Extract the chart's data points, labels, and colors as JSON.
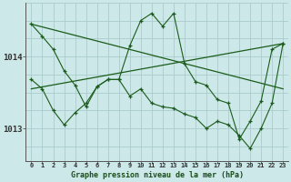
{
  "xlabel": "Graphe pression niveau de la mer (hPa)",
  "bg_color": "#cce8e8",
  "line_color": "#1a5c1a",
  "grid_color": "#aacccc",
  "ytick_labels": [
    "1013",
    "1014"
  ],
  "ytick_values": [
    1013.0,
    1014.0
  ],
  "xlim": [
    -0.5,
    23.5
  ],
  "ylim": [
    1012.55,
    1014.75
  ],
  "xtick_labels": [
    "0",
    "1",
    "2",
    "3",
    "4",
    "5",
    "6",
    "7",
    "8",
    "9",
    "10",
    "11",
    "12",
    "13",
    "14",
    "15",
    "16",
    "17",
    "18",
    "19",
    "20",
    "21",
    "22",
    "23"
  ],
  "line1_x": [
    0,
    1,
    2,
    3,
    4,
    5,
    6,
    7,
    8,
    9,
    10,
    11,
    12,
    13,
    14,
    15,
    16,
    17,
    18,
    19,
    20,
    21,
    22,
    23
  ],
  "line1_y": [
    1014.45,
    1014.28,
    1014.1,
    1013.8,
    1013.6,
    1013.3,
    1013.58,
    1013.68,
    1013.68,
    1014.15,
    1014.5,
    1014.6,
    1014.42,
    1014.6,
    1013.9,
    1013.65,
    1013.6,
    1013.4,
    1013.35,
    1012.85,
    1013.1,
    1013.38,
    1014.1,
    1014.18
  ],
  "line2_x": [
    0,
    1,
    2,
    3,
    4,
    5,
    6,
    7,
    8,
    9,
    10,
    11,
    12,
    13,
    14,
    15,
    16,
    17,
    18,
    19,
    20,
    21,
    22,
    23
  ],
  "line2_y": [
    1013.68,
    1013.55,
    1013.25,
    1013.05,
    1013.22,
    1013.35,
    1013.58,
    1013.68,
    1013.68,
    1013.45,
    1013.55,
    1013.35,
    1013.3,
    1013.28,
    1013.2,
    1013.15,
    1013.0,
    1013.1,
    1013.05,
    1012.9,
    1012.72,
    1013.0,
    1013.35,
    1014.18
  ],
  "trend1_x": [
    0,
    23
  ],
  "trend1_y": [
    1014.45,
    1013.55
  ],
  "trend2_x": [
    0,
    23
  ],
  "trend2_y": [
    1013.55,
    1014.18
  ]
}
